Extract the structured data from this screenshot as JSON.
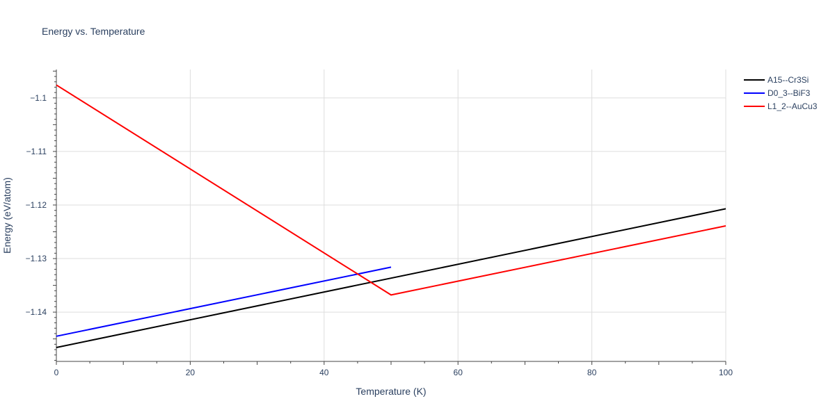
{
  "chart_data": {
    "type": "line",
    "title": "Energy vs. Temperature",
    "xlabel": "Temperature (K)",
    "ylabel": "Energy (eV/atom)",
    "xlim": [
      0,
      100
    ],
    "ylim": [
      -1.1492,
      -1.0947
    ],
    "x_ticks": [
      0,
      20,
      40,
      60,
      80,
      100
    ],
    "x_tick_labels": [
      "0",
      "20",
      "40",
      "60",
      "80",
      "100"
    ],
    "y_ticks": [
      -1.1,
      -1.11,
      -1.12,
      -1.13,
      -1.14
    ],
    "y_tick_labels": [
      "−1.1",
      "−1.11",
      "−1.12",
      "−1.13",
      "−1.14"
    ],
    "grid": true,
    "legend_position": "top-right",
    "series": [
      {
        "name": "A15--Cr3Si",
        "color": "#000000",
        "x": [
          0,
          100
        ],
        "y": [
          -1.1466,
          -1.1207
        ]
      },
      {
        "name": "D0_3--BiF3",
        "color": "#0000ff",
        "x": [
          0,
          50
        ],
        "y": [
          -1.1445,
          -1.1316
        ]
      },
      {
        "name": "L1_2--AuCu3",
        "color": "#ff0000",
        "x": [
          0,
          50,
          100
        ],
        "y": [
          -1.0976,
          -1.1368,
          -1.1239
        ]
      }
    ]
  }
}
